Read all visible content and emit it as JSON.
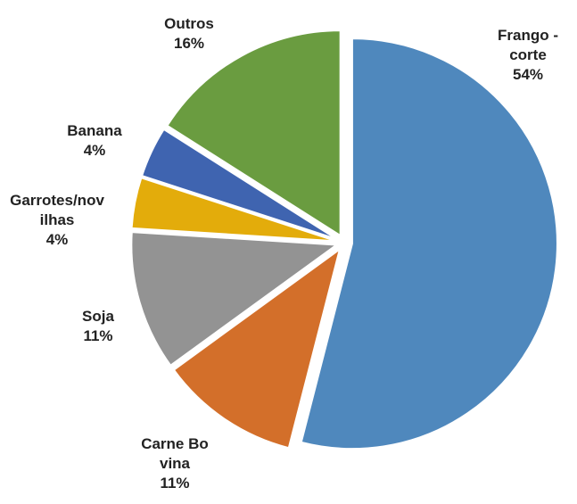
{
  "chart_data": {
    "type": "pie",
    "categories": [
      "Frango - corte",
      "Carne Bovina",
      "Soja",
      "Garrotes/novilhas",
      "Banana",
      "Outros"
    ],
    "values": [
      54,
      11,
      11,
      4,
      4,
      16
    ],
    "value_labels": [
      "54%",
      "11%",
      "11%",
      "4%",
      "4%",
      "16%"
    ],
    "colors": [
      "#4f88bd",
      "#d36f2a",
      "#939393",
      "#e3ac0b",
      "#3f64b0",
      "#6a9c40"
    ]
  }
}
